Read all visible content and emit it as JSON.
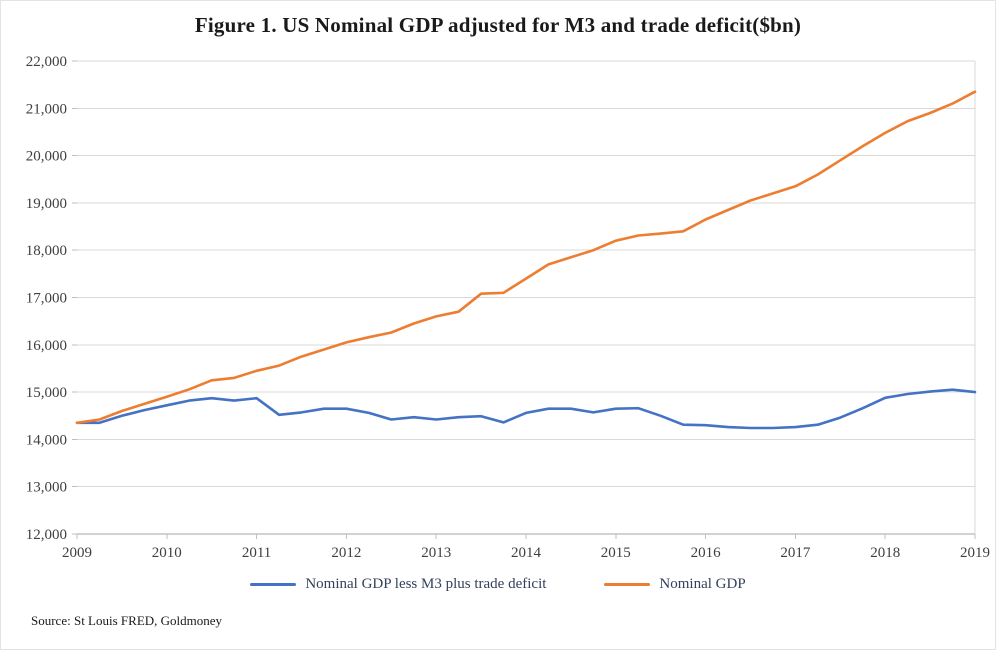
{
  "title": "Figure 1. US Nominal GDP adjusted for M3 and trade deficit($bn)",
  "source": "Source: St Louis FRED, Goldmoney",
  "colors": {
    "adjusted_series": "#4472C4",
    "nominal_series": "#ED7D31",
    "gridline": "#d9d9d9",
    "axis": "#a6a6a6",
    "tick_mark": "#bfbfbf"
  },
  "legend": [
    {
      "label": "Nominal GDP less M3 plus trade deficit",
      "color": "#4472C4"
    },
    {
      "label": "Nominal GDP",
      "color": "#ED7D31"
    }
  ],
  "chart_data": {
    "type": "line",
    "title": "Figure 1. US Nominal GDP adjusted for M3 and trade deficit($bn)",
    "xlabel": "",
    "ylabel": "",
    "xlim": [
      2009,
      2019
    ],
    "ylim": [
      12000,
      22000
    ],
    "x_ticks": [
      2009,
      2010,
      2011,
      2012,
      2013,
      2014,
      2015,
      2016,
      2017,
      2018,
      2019
    ],
    "y_ticks": [
      12000,
      13000,
      14000,
      15000,
      16000,
      17000,
      18000,
      19000,
      20000,
      21000,
      22000
    ],
    "grid": "horizontal",
    "legend_position": "bottom",
    "x": [
      2009,
      2009.25,
      2009.5,
      2009.75,
      2010,
      2010.25,
      2010.5,
      2010.75,
      2011,
      2011.25,
      2011.5,
      2011.75,
      2012,
      2012.25,
      2012.5,
      2012.75,
      2013,
      2013.25,
      2013.5,
      2013.75,
      2014,
      2014.25,
      2014.5,
      2014.75,
      2015,
      2015.25,
      2015.5,
      2015.75,
      2016,
      2016.25,
      2016.5,
      2016.75,
      2017,
      2017.25,
      2017.5,
      2017.75,
      2018,
      2018.25,
      2018.5,
      2018.75,
      2019
    ],
    "series": [
      {
        "name": "Nominal GDP less M3 plus trade deficit",
        "color": "#4472C4",
        "values": [
          14350,
          14350,
          14500,
          14620,
          14720,
          14820,
          14870,
          14820,
          14870,
          14520,
          14570,
          14650,
          14650,
          14560,
          14420,
          14470,
          14420,
          14470,
          14490,
          14360,
          14560,
          14650,
          14650,
          14570,
          14650,
          14660,
          14500,
          14310,
          14300,
          14260,
          14240,
          14240,
          14260,
          14310,
          14460,
          14660,
          14880,
          14960,
          15010,
          15050,
          15000
        ]
      },
      {
        "name": "Nominal GDP",
        "color": "#ED7D31",
        "values": [
          14350,
          14420,
          14600,
          14750,
          14900,
          15060,
          15250,
          15300,
          15450,
          15560,
          15750,
          15900,
          16050,
          16160,
          16260,
          16450,
          16600,
          16700,
          17080,
          17100,
          17400,
          17700,
          17850,
          18000,
          18200,
          18310,
          18350,
          18400,
          18650,
          18850,
          19050,
          19200,
          19350,
          19600,
          19900,
          20200,
          20480,
          20730,
          20900,
          21100,
          21350
        ]
      }
    ]
  }
}
